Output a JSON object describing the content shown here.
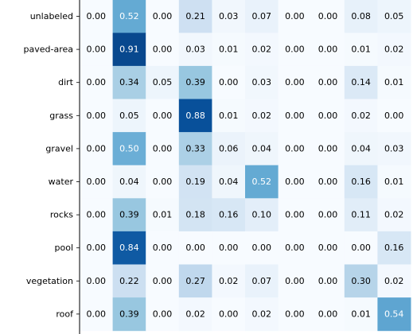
{
  "chart_data": {
    "type": "heatmap",
    "row_labels": [
      "unlabeled",
      "paved-area",
      "dirt",
      "grass",
      "gravel",
      "water",
      "rocks",
      "pool",
      "vegetation",
      "roof"
    ],
    "values": [
      [
        0.0,
        0.52,
        0.0,
        0.21,
        0.03,
        0.07,
        0.0,
        0.0,
        0.08,
        0.05
      ],
      [
        0.0,
        0.91,
        0.0,
        0.03,
        0.01,
        0.02,
        0.0,
        0.0,
        0.01,
        0.02
      ],
      [
        0.0,
        0.34,
        0.05,
        0.39,
        0.0,
        0.03,
        0.0,
        0.0,
        0.14,
        0.01
      ],
      [
        0.0,
        0.05,
        0.0,
        0.88,
        0.01,
        0.02,
        0.0,
        0.0,
        0.02,
        0.0
      ],
      [
        0.0,
        0.5,
        0.0,
        0.33,
        0.06,
        0.04,
        0.0,
        0.0,
        0.04,
        0.03
      ],
      [
        0.0,
        0.04,
        0.0,
        0.19,
        0.04,
        0.52,
        0.0,
        0.0,
        0.16,
        0.01
      ],
      [
        0.0,
        0.39,
        0.01,
        0.18,
        0.16,
        0.1,
        0.0,
        0.0,
        0.11,
        0.02
      ],
      [
        0.0,
        0.84,
        0.0,
        0.0,
        0.0,
        0.0,
        0.0,
        0.0,
        0.0,
        0.16
      ],
      [
        0.0,
        0.22,
        0.0,
        0.27,
        0.02,
        0.07,
        0.0,
        0.0,
        0.3,
        0.02
      ],
      [
        0.0,
        0.39,
        0.0,
        0.02,
        0.0,
        0.02,
        0.0,
        0.0,
        0.01,
        0.54
      ]
    ],
    "colormap": "Blues",
    "value_range": [
      0,
      1
    ],
    "light_text_color": "#ffffff",
    "dark_text_color": "#000000",
    "axis_color": "#000000"
  }
}
